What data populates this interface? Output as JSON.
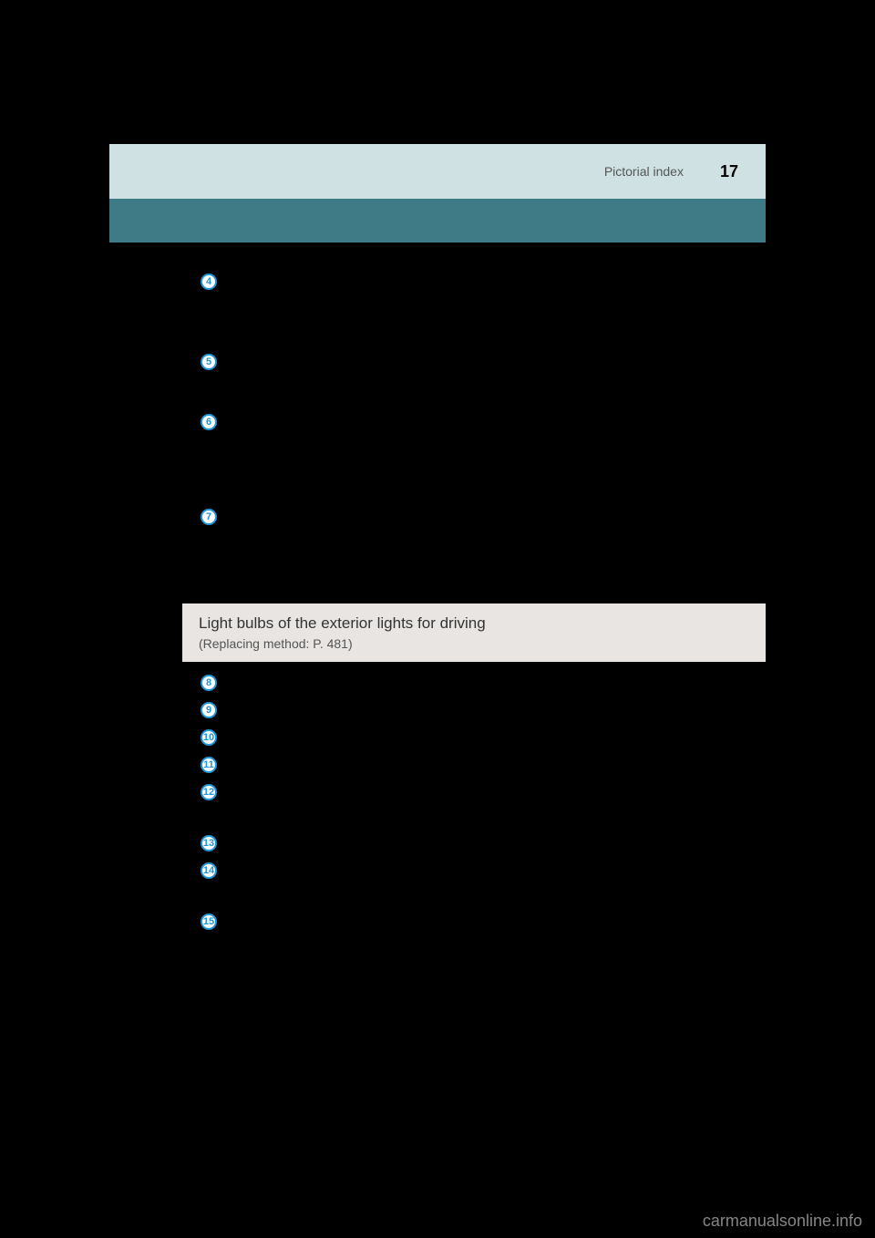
{
  "header": {
    "section_label": "Pictorial index",
    "page_number": "17"
  },
  "items_top": [
    {
      "num": "4",
      "spacer_after": 64
    },
    {
      "num": "5",
      "spacer_after": 42
    },
    {
      "num": "6",
      "spacer_after": 80
    },
    {
      "num": "7",
      "spacer_after": 58
    }
  ],
  "light_bulbs": {
    "title": "Light bulbs of the exterior lights for driving",
    "subtitle": "(Replacing method: P. 481)"
  },
  "items_bottom": [
    {
      "num": "8",
      "spacer_after": 6
    },
    {
      "num": "9",
      "spacer_after": 6
    },
    {
      "num": "10",
      "spacer_after": 6
    },
    {
      "num": "11",
      "spacer_after": 6
    },
    {
      "num": "12",
      "spacer_after": 32
    },
    {
      "num": "13",
      "spacer_after": 6
    },
    {
      "num": "14",
      "spacer_after": 32
    },
    {
      "num": "15",
      "spacer_after": 6
    }
  ],
  "watermark": "carmanualsonline.info",
  "colors": {
    "background": "#000000",
    "header_top_bg": "#cfe1e3",
    "header_teal_bg": "#3f7a87",
    "circle_border": "#2196d6",
    "circle_text": "#2196d6",
    "light_section_bg": "#e8e5e2",
    "watermark_color": "#868686"
  }
}
